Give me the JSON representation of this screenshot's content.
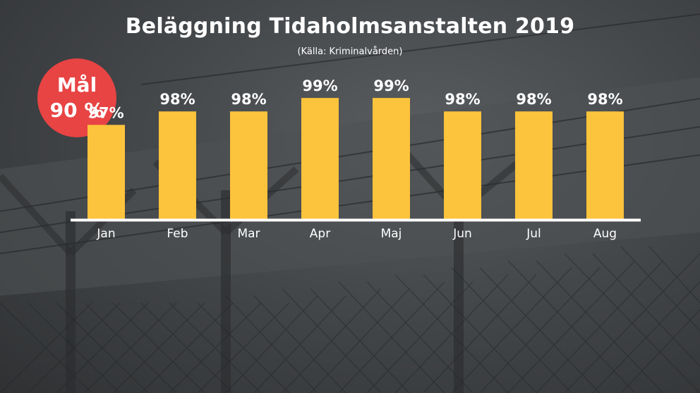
{
  "title": "Beläggning Tidaholmsanstalten 2019",
  "subtitle": "(Källa: Kriminalvården)",
  "goal": {
    "line1": "Mål",
    "line2": "90 %"
  },
  "colors": {
    "bar": "#fcc33c",
    "goal": "#e84444",
    "text": "#ffffff",
    "axis": "#ffffff"
  },
  "chart_data": {
    "type": "bar",
    "categories": [
      "Jan",
      "Feb",
      "Mar",
      "Apr",
      "Maj",
      "Jun",
      "Jul",
      "Aug"
    ],
    "values": [
      97,
      98,
      98,
      99,
      99,
      98,
      98,
      98
    ],
    "labels": [
      "97%",
      "98%",
      "98%",
      "99%",
      "99%",
      "98%",
      "98%",
      "98%"
    ],
    "ylim": [
      90,
      100
    ],
    "grid": false,
    "legend": "none"
  }
}
